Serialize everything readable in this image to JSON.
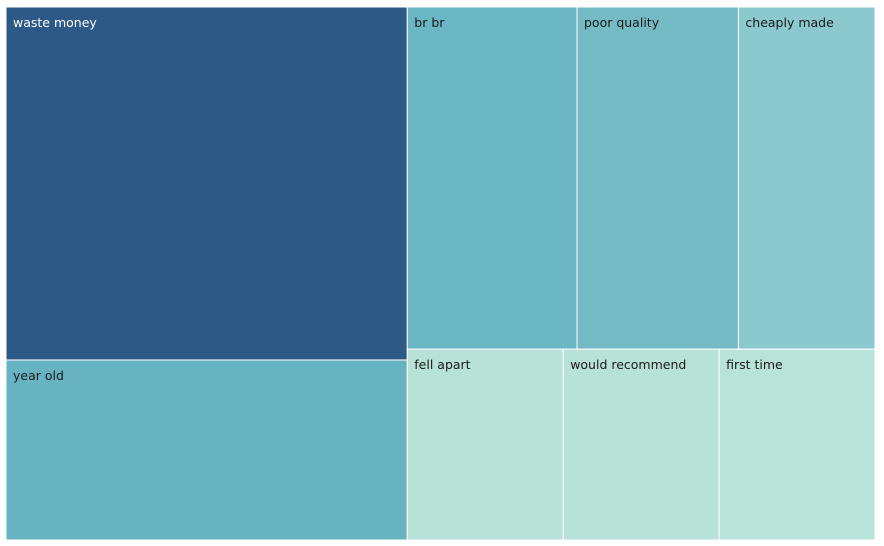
{
  "chart_data": {
    "type": "treemap",
    "items": [
      {
        "label": "waste money",
        "value": 100,
        "color": "#2c5985"
      },
      {
        "label": "year old",
        "value": 51,
        "color": "#68b3c2"
      },
      {
        "label": "br br",
        "value": 41,
        "color": "#6ab6c4"
      },
      {
        "label": "poor quality",
        "value": 39,
        "color": "#74bbc6"
      },
      {
        "label": "cheaply made",
        "value": 33,
        "color": "#8bc9ce"
      },
      {
        "label": "fell apart",
        "value": 21,
        "color": "#b8e2d7"
      },
      {
        "label": "would recommend",
        "value": 21,
        "color": "#b8e2d7"
      },
      {
        "label": "first time",
        "value": 21,
        "color": "#b9e3d8"
      }
    ]
  }
}
